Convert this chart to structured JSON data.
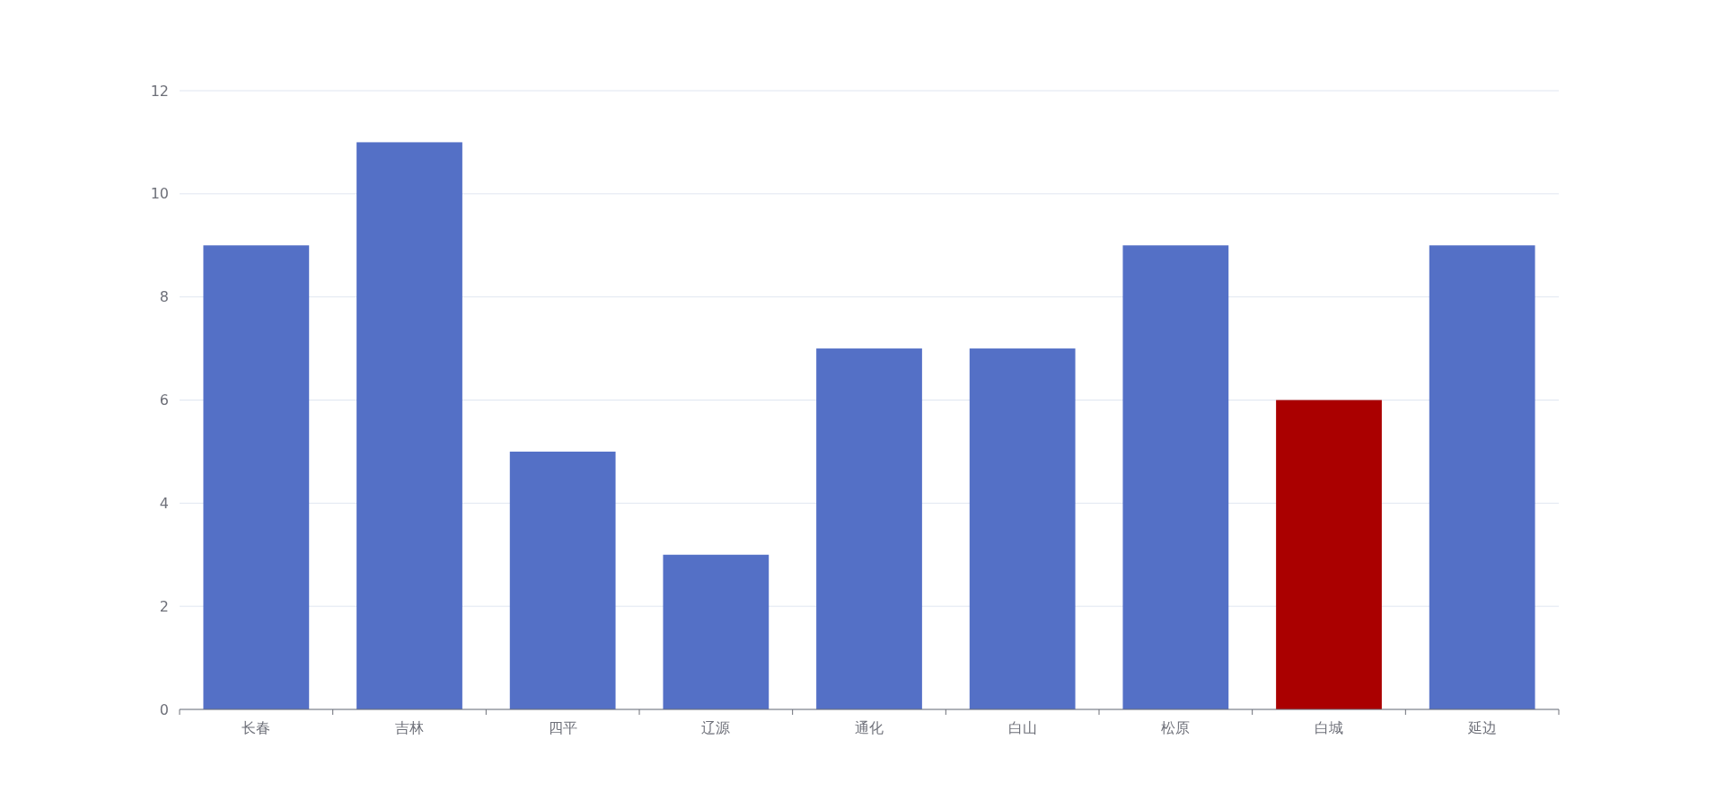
{
  "chart_data": {
    "type": "bar",
    "categories": [
      "长春",
      "吉林",
      "四平",
      "辽源",
      "通化",
      "白山",
      "松原",
      "白城",
      "延边"
    ],
    "values": [
      9,
      11,
      5,
      3,
      7,
      7,
      9,
      6,
      9
    ],
    "colors": [
      "#5470c6",
      "#5470c6",
      "#5470c6",
      "#5470c6",
      "#5470c6",
      "#5470c6",
      "#5470c6",
      "#aa0000",
      "#5470c6"
    ],
    "ylim": [
      0,
      12
    ],
    "yticks": [
      0,
      2,
      4,
      6,
      8,
      10,
      12
    ],
    "grid": "y"
  }
}
